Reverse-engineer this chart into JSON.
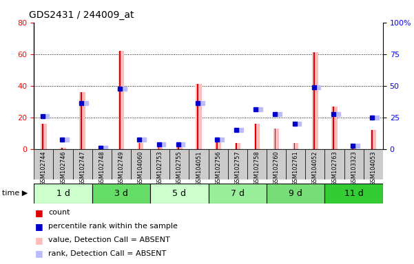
{
  "title": "GDS2431 / 244009_at",
  "samples": [
    "GSM102744",
    "GSM102746",
    "GSM102747",
    "GSM102748",
    "GSM102749",
    "GSM104060",
    "GSM102753",
    "GSM102755",
    "GSM104051",
    "GSM102756",
    "GSM102757",
    "GSM102758",
    "GSM102760",
    "GSM102761",
    "GSM104052",
    "GSM102763",
    "GSM103323",
    "GSM104053"
  ],
  "groups": [
    {
      "label": "1 d",
      "start": 0,
      "end": 3,
      "color": "#ccffcc"
    },
    {
      "label": "3 d",
      "start": 3,
      "end": 6,
      "color": "#66dd66"
    },
    {
      "label": "5 d",
      "start": 6,
      "end": 9,
      "color": "#ccffcc"
    },
    {
      "label": "7 d",
      "start": 9,
      "end": 12,
      "color": "#99ee99"
    },
    {
      "label": "9 d",
      "start": 12,
      "end": 15,
      "color": "#77dd77"
    },
    {
      "label": "11 d",
      "start": 15,
      "end": 18,
      "color": "#33cc33"
    }
  ],
  "count_values": [
    16,
    1,
    36,
    1,
    62,
    4,
    4,
    3,
    41,
    6,
    4,
    16,
    13,
    4,
    61,
    27,
    1,
    12
  ],
  "percentile_values": [
    21,
    6,
    29,
    1,
    38,
    6,
    3,
    3,
    29,
    6,
    12,
    25,
    22,
    16,
    39,
    22,
    2,
    20
  ],
  "absent_value_bars": [
    16,
    1,
    36,
    1,
    62,
    4,
    4,
    3,
    41,
    6,
    4,
    16,
    13,
    4,
    61,
    27,
    1,
    12
  ],
  "absent_rank_bars": [
    21,
    6,
    29,
    1,
    38,
    6,
    3,
    3,
    29,
    6,
    12,
    25,
    22,
    16,
    39,
    22,
    2,
    20
  ],
  "ylim_left": [
    0,
    80
  ],
  "ylim_right": [
    0,
    100
  ],
  "yticks_left": [
    0,
    20,
    40,
    60,
    80
  ],
  "yticks_right": [
    0,
    25,
    50,
    75,
    100
  ],
  "ytick_labels_right": [
    "0",
    "25",
    "50",
    "75",
    "100%"
  ],
  "bar_color_absent_value": "#ffbbbb",
  "bar_color_absent_rank": "#bbbbff",
  "bar_color_count": "#dd0000",
  "bar_color_percentile": "#0000cc",
  "plot_bg_color": "#ffffff",
  "fig_bg_color": "#ffffff",
  "xtick_bg_color": "#cccccc",
  "legend_items": [
    {
      "color": "#dd0000",
      "label": "count"
    },
    {
      "color": "#0000cc",
      "label": "percentile rank within the sample"
    },
    {
      "color": "#ffbbbb",
      "label": "value, Detection Call = ABSENT"
    },
    {
      "color": "#bbbbff",
      "label": "rank, Detection Call = ABSENT"
    }
  ]
}
